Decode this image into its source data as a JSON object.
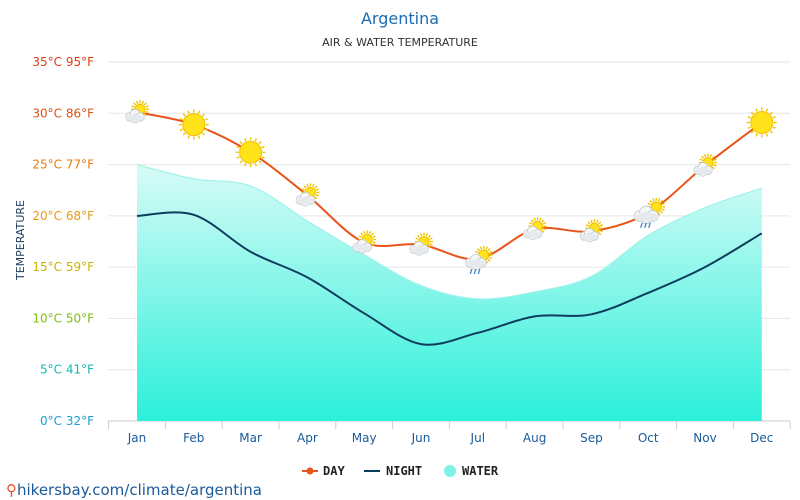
{
  "page": {
    "title": "Argentina",
    "subtitle": "AIR & WATER TEMPERATURE",
    "footer_url": "hikersbay.com/climate/argentina"
  },
  "chart_data": {
    "type": "line",
    "title": "Argentina",
    "subtitle": "AIR & WATER TEMPERATURE",
    "ylabel": "TEMPERATURE",
    "xlabel": "",
    "categories": [
      "Jan",
      "Feb",
      "Mar",
      "Apr",
      "May",
      "Jun",
      "Jul",
      "Aug",
      "Sep",
      "Oct",
      "Nov",
      "Dec"
    ],
    "ylim": [
      0,
      35
    ],
    "yticks": [
      {
        "value": 35,
        "label": "35°C 95°F",
        "color": "#e03c10"
      },
      {
        "value": 30,
        "label": "30°C 86°F",
        "color": "#e05010"
      },
      {
        "value": 25,
        "label": "25°C 77°F",
        "color": "#e87a10"
      },
      {
        "value": 20,
        "label": "20°C 68°F",
        "color": "#e89a10"
      },
      {
        "value": 15,
        "label": "15°C 59°F",
        "color": "#c8b400"
      },
      {
        "value": 10,
        "label": "10°C 50°F",
        "color": "#7cc010"
      },
      {
        "value": 5,
        "label": "5°C 41°F",
        "color": "#10b8b8"
      },
      {
        "value": 0,
        "label": "0°C 32°F",
        "color": "#1aa0d0"
      }
    ],
    "grid": true,
    "legend_position": "bottom-center",
    "series": [
      {
        "name": "DAY",
        "color": "#e8541a",
        "values": [
          30.1,
          28.9,
          26.2,
          22.0,
          17.4,
          17.2,
          15.8,
          18.7,
          18.5,
          20.3,
          24.9,
          29.1
        ]
      },
      {
        "name": "NIGHT",
        "color": "#0d3d5c",
        "values": [
          20.0,
          20.1,
          16.5,
          14.0,
          10.5,
          7.5,
          8.6,
          10.2,
          10.4,
          12.5,
          15.0,
          18.3
        ]
      },
      {
        "name": "WATER",
        "color": "#7ff2e8",
        "values": [
          25.0,
          23.6,
          22.9,
          19.5,
          16.2,
          13.2,
          11.9,
          12.6,
          14.1,
          18.1,
          20.8,
          22.7
        ]
      }
    ],
    "weather_icons": [
      "cloud-sun",
      "sun",
      "sun",
      "cloud-sun",
      "cloud-sun",
      "cloud-sun",
      "rain-sun",
      "cloud-sun",
      "cloud-sun",
      "cloud-rain-sun",
      "cloud-sun",
      "sun"
    ]
  }
}
